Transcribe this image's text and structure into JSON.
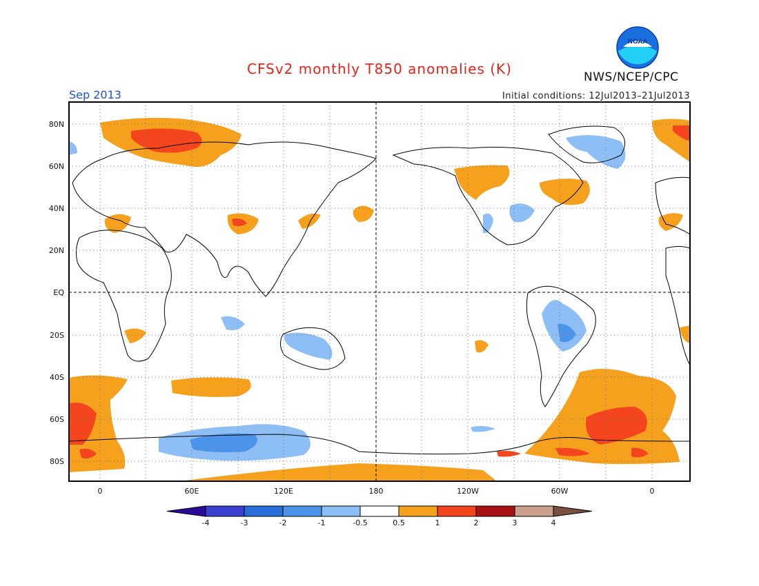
{
  "title": "CFSv2 monthly T850 anomalies (K)",
  "valid_month": "Sep 2013",
  "initial_conditions": "Initial conditions: 12Jul2013–21Jul2013",
  "agency": "NWS/NCEP/CPC",
  "logo_text": "NOAA",
  "lat_labels": [
    "80N",
    "60N",
    "40N",
    "20N",
    "EQ",
    "20S",
    "40S",
    "60S",
    "80S"
  ],
  "lon_labels": [
    "0",
    "60E",
    "120E",
    "180",
    "120W",
    "60W",
    "0"
  ],
  "colorbar": {
    "labels": [
      "-4",
      "-3",
      "-2",
      "-1",
      "-0.5",
      "0.5",
      "1",
      "2",
      "3",
      "4"
    ],
    "colors": [
      "#2a0a99",
      "#3b3fcf",
      "#2a6fd9",
      "#4c94ea",
      "#8dbef5",
      "#ffffff",
      "#f5a11d",
      "#f4451f",
      "#a81212",
      "#caa08c",
      "#7a5040"
    ]
  },
  "colors": {
    "warm1": "#f5a11d",
    "warm2": "#f4451f",
    "cool1": "#8dbef5",
    "cool2": "#4c94ea"
  }
}
